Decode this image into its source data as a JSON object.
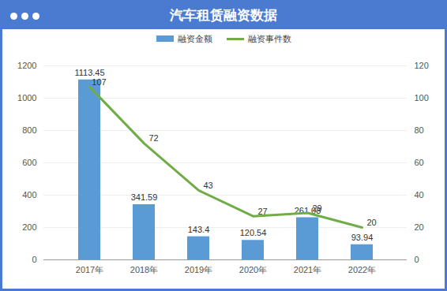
{
  "chart_data": {
    "type": "bar",
    "title": "汽车租赁融资数据",
    "categories": [
      "2017年",
      "2018年",
      "2019年",
      "2020年",
      "2021年",
      "2022年"
    ],
    "series": [
      {
        "name": "融资金额",
        "type": "bar",
        "color": "#5b9bd5",
        "values": [
          1113.45,
          341.59,
          143.4,
          120.54,
          261.08,
          93.94
        ]
      },
      {
        "name": "融资事件数",
        "type": "line",
        "axis": "y2",
        "color": "#70ad47",
        "values": [
          107,
          72,
          43,
          27,
          29,
          20
        ]
      }
    ],
    "ylim": [
      0,
      1200
    ],
    "yticks": [
      0,
      200,
      400,
      600,
      800,
      1000,
      1200
    ],
    "y2lim": [
      0,
      120
    ],
    "y2ticks": [
      0,
      20,
      40,
      60,
      80,
      100,
      120
    ],
    "grid": true,
    "legend": "top",
    "data_labels": true
  }
}
